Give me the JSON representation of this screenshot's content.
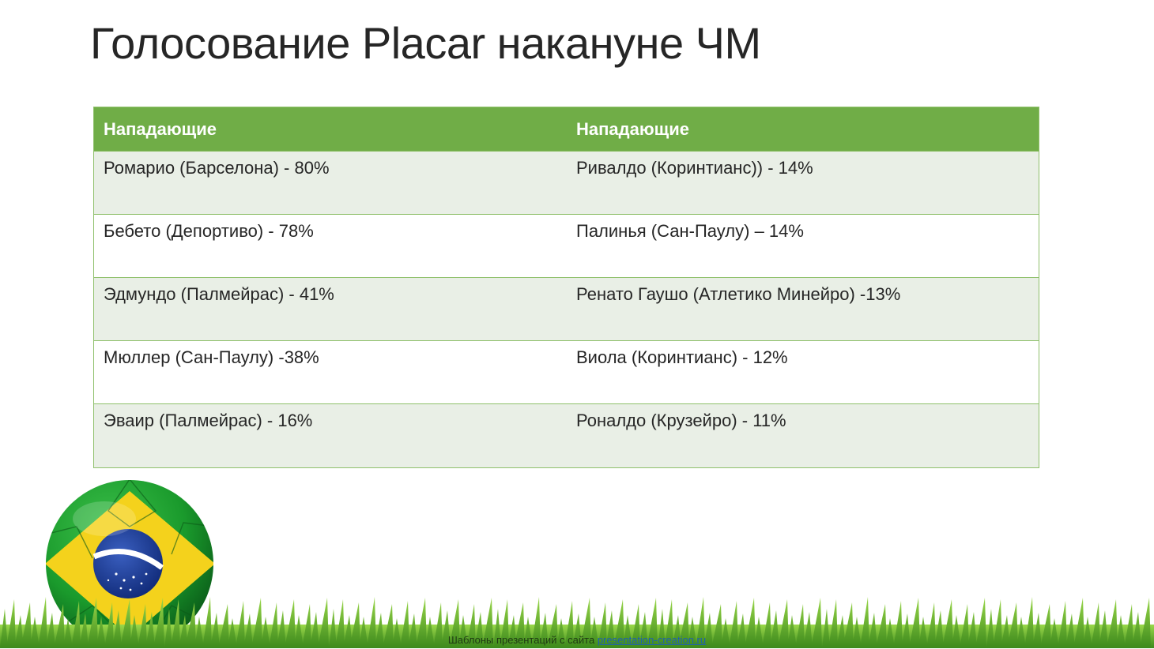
{
  "title": "Голосование Placar накануне ЧМ",
  "table": {
    "headers": [
      "Нападающие",
      "Нападающие"
    ],
    "rows": [
      [
        "Ромарио (Барселона) - 80%",
        "Ривалдо (Коринтианс)) - 14%"
      ],
      [
        "Бебето (Депортиво) - 78%",
        "Палинья (Сан-Паулу) – 14%"
      ],
      [
        "Эдмундо (Палмейрас) - 41%",
        "Ренато Гаушо (Атлетико Минейро) -13%"
      ],
      [
        "Мюллер (Сан-Паулу) -38%",
        "Виола (Коринтианс) - 12%"
      ],
      [
        "Эваир (Палмейрас) - 16%",
        "Роналдо (Крузейро) - 11%"
      ]
    ]
  },
  "footer": {
    "text": "Шаблоны презентаций с сайта",
    "link": "presentation-creation.ru"
  },
  "colors": {
    "header_green": "#70ad47",
    "band_row": "#e9efe6",
    "border": "#8fc06b"
  }
}
